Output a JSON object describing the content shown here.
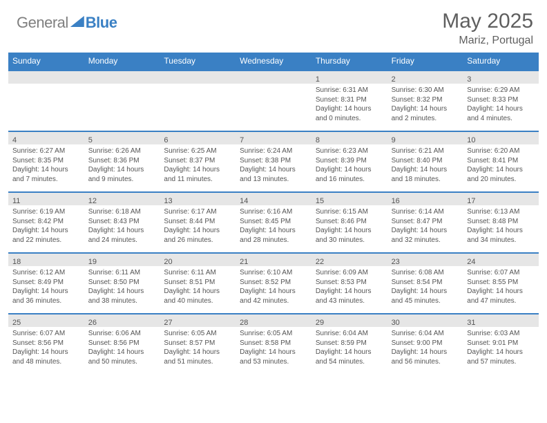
{
  "brand": {
    "part1": "General",
    "part2": "Blue"
  },
  "title": "May 2025",
  "location": "Mariz, Portugal",
  "weekdays": [
    "Sunday",
    "Monday",
    "Tuesday",
    "Wednesday",
    "Thursday",
    "Friday",
    "Saturday"
  ],
  "colors": {
    "header_bar": "#3a80c4",
    "daynum_bg": "#e6e6e6",
    "text": "#545454",
    "logo_gray": "#7f7f7f",
    "logo_blue": "#3a80c4",
    "background": "#ffffff"
  },
  "weeks": [
    [
      {
        "n": "",
        "sr": "",
        "ss": "",
        "dl": ""
      },
      {
        "n": "",
        "sr": "",
        "ss": "",
        "dl": ""
      },
      {
        "n": "",
        "sr": "",
        "ss": "",
        "dl": ""
      },
      {
        "n": "",
        "sr": "",
        "ss": "",
        "dl": ""
      },
      {
        "n": "1",
        "sr": "Sunrise: 6:31 AM",
        "ss": "Sunset: 8:31 PM",
        "dl": "Daylight: 14 hours and 0 minutes."
      },
      {
        "n": "2",
        "sr": "Sunrise: 6:30 AM",
        "ss": "Sunset: 8:32 PM",
        "dl": "Daylight: 14 hours and 2 minutes."
      },
      {
        "n": "3",
        "sr": "Sunrise: 6:29 AM",
        "ss": "Sunset: 8:33 PM",
        "dl": "Daylight: 14 hours and 4 minutes."
      }
    ],
    [
      {
        "n": "4",
        "sr": "Sunrise: 6:27 AM",
        "ss": "Sunset: 8:35 PM",
        "dl": "Daylight: 14 hours and 7 minutes."
      },
      {
        "n": "5",
        "sr": "Sunrise: 6:26 AM",
        "ss": "Sunset: 8:36 PM",
        "dl": "Daylight: 14 hours and 9 minutes."
      },
      {
        "n": "6",
        "sr": "Sunrise: 6:25 AM",
        "ss": "Sunset: 8:37 PM",
        "dl": "Daylight: 14 hours and 11 minutes."
      },
      {
        "n": "7",
        "sr": "Sunrise: 6:24 AM",
        "ss": "Sunset: 8:38 PM",
        "dl": "Daylight: 14 hours and 13 minutes."
      },
      {
        "n": "8",
        "sr": "Sunrise: 6:23 AM",
        "ss": "Sunset: 8:39 PM",
        "dl": "Daylight: 14 hours and 16 minutes."
      },
      {
        "n": "9",
        "sr": "Sunrise: 6:21 AM",
        "ss": "Sunset: 8:40 PM",
        "dl": "Daylight: 14 hours and 18 minutes."
      },
      {
        "n": "10",
        "sr": "Sunrise: 6:20 AM",
        "ss": "Sunset: 8:41 PM",
        "dl": "Daylight: 14 hours and 20 minutes."
      }
    ],
    [
      {
        "n": "11",
        "sr": "Sunrise: 6:19 AM",
        "ss": "Sunset: 8:42 PM",
        "dl": "Daylight: 14 hours and 22 minutes."
      },
      {
        "n": "12",
        "sr": "Sunrise: 6:18 AM",
        "ss": "Sunset: 8:43 PM",
        "dl": "Daylight: 14 hours and 24 minutes."
      },
      {
        "n": "13",
        "sr": "Sunrise: 6:17 AM",
        "ss": "Sunset: 8:44 PM",
        "dl": "Daylight: 14 hours and 26 minutes."
      },
      {
        "n": "14",
        "sr": "Sunrise: 6:16 AM",
        "ss": "Sunset: 8:45 PM",
        "dl": "Daylight: 14 hours and 28 minutes."
      },
      {
        "n": "15",
        "sr": "Sunrise: 6:15 AM",
        "ss": "Sunset: 8:46 PM",
        "dl": "Daylight: 14 hours and 30 minutes."
      },
      {
        "n": "16",
        "sr": "Sunrise: 6:14 AM",
        "ss": "Sunset: 8:47 PM",
        "dl": "Daylight: 14 hours and 32 minutes."
      },
      {
        "n": "17",
        "sr": "Sunrise: 6:13 AM",
        "ss": "Sunset: 8:48 PM",
        "dl": "Daylight: 14 hours and 34 minutes."
      }
    ],
    [
      {
        "n": "18",
        "sr": "Sunrise: 6:12 AM",
        "ss": "Sunset: 8:49 PM",
        "dl": "Daylight: 14 hours and 36 minutes."
      },
      {
        "n": "19",
        "sr": "Sunrise: 6:11 AM",
        "ss": "Sunset: 8:50 PM",
        "dl": "Daylight: 14 hours and 38 minutes."
      },
      {
        "n": "20",
        "sr": "Sunrise: 6:11 AM",
        "ss": "Sunset: 8:51 PM",
        "dl": "Daylight: 14 hours and 40 minutes."
      },
      {
        "n": "21",
        "sr": "Sunrise: 6:10 AM",
        "ss": "Sunset: 8:52 PM",
        "dl": "Daylight: 14 hours and 42 minutes."
      },
      {
        "n": "22",
        "sr": "Sunrise: 6:09 AM",
        "ss": "Sunset: 8:53 PM",
        "dl": "Daylight: 14 hours and 43 minutes."
      },
      {
        "n": "23",
        "sr": "Sunrise: 6:08 AM",
        "ss": "Sunset: 8:54 PM",
        "dl": "Daylight: 14 hours and 45 minutes."
      },
      {
        "n": "24",
        "sr": "Sunrise: 6:07 AM",
        "ss": "Sunset: 8:55 PM",
        "dl": "Daylight: 14 hours and 47 minutes."
      }
    ],
    [
      {
        "n": "25",
        "sr": "Sunrise: 6:07 AM",
        "ss": "Sunset: 8:56 PM",
        "dl": "Daylight: 14 hours and 48 minutes."
      },
      {
        "n": "26",
        "sr": "Sunrise: 6:06 AM",
        "ss": "Sunset: 8:56 PM",
        "dl": "Daylight: 14 hours and 50 minutes."
      },
      {
        "n": "27",
        "sr": "Sunrise: 6:05 AM",
        "ss": "Sunset: 8:57 PM",
        "dl": "Daylight: 14 hours and 51 minutes."
      },
      {
        "n": "28",
        "sr": "Sunrise: 6:05 AM",
        "ss": "Sunset: 8:58 PM",
        "dl": "Daylight: 14 hours and 53 minutes."
      },
      {
        "n": "29",
        "sr": "Sunrise: 6:04 AM",
        "ss": "Sunset: 8:59 PM",
        "dl": "Daylight: 14 hours and 54 minutes."
      },
      {
        "n": "30",
        "sr": "Sunrise: 6:04 AM",
        "ss": "Sunset: 9:00 PM",
        "dl": "Daylight: 14 hours and 56 minutes."
      },
      {
        "n": "31",
        "sr": "Sunrise: 6:03 AM",
        "ss": "Sunset: 9:01 PM",
        "dl": "Daylight: 14 hours and 57 minutes."
      }
    ]
  ]
}
